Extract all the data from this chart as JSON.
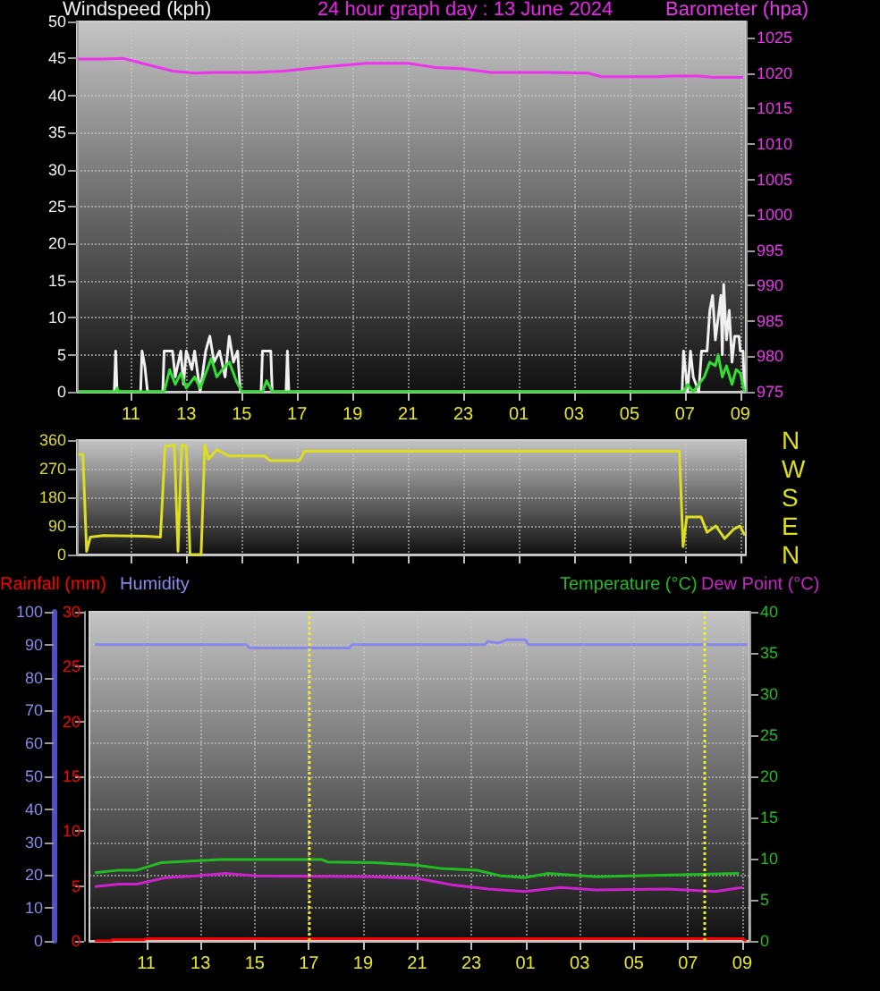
{
  "chart_data": [
    {
      "type": "line",
      "title": "24 hour graph day : 13 June 2024",
      "ylabel": "Windspeed (kph)",
      "y2label": "Barometer (hpa)",
      "xlim": [
        "2024-06-13T09:03",
        "2024-06-14T09:12"
      ],
      "xticks": [
        {
          "value": "2024-06-13T11:00",
          "label": "11"
        },
        {
          "value": "2024-06-13T13:00",
          "label": "13"
        },
        {
          "value": "2024-06-13T15:00",
          "label": "15"
        },
        {
          "value": "2024-06-13T17:00",
          "label": "17"
        },
        {
          "value": "2024-06-13T19:00",
          "label": "19"
        },
        {
          "value": "2024-06-13T21:00",
          "label": "21"
        },
        {
          "value": "2024-06-13T23:00",
          "label": "23"
        },
        {
          "value": "2024-06-14T01:00",
          "label": "01"
        },
        {
          "value": "2024-06-14T03:00",
          "label": "03"
        },
        {
          "value": "2024-06-14T05:00",
          "label": "05"
        },
        {
          "value": "2024-06-14T07:00",
          "label": "07"
        },
        {
          "value": "2024-06-14T09:00",
          "label": "09"
        }
      ],
      "ylim": [
        0,
        50
      ],
      "yticks": [
        0,
        5,
        10,
        15,
        20,
        25,
        30,
        35,
        40,
        45,
        50
      ],
      "y2lim": [
        975,
        1027.3
      ],
      "y2ticks": [
        975,
        980,
        985,
        990,
        995,
        1000,
        1005,
        1010,
        1015,
        1020,
        1025
      ],
      "grid": true,
      "series": [
        {
          "color": "#f0f0f0",
          "x": [
            "2024-06-13T09:06",
            "2024-06-13T10:24",
            "2024-06-13T10:27",
            "2024-06-13T10:30",
            "2024-06-13T11:21",
            "2024-06-13T11:24",
            "2024-06-13T11:30",
            "2024-06-13T11:36",
            "2024-06-13T12:09",
            "2024-06-13T12:12",
            "2024-06-13T12:30",
            "2024-06-13T12:36",
            "2024-06-13T12:48",
            "2024-06-13T12:54",
            "2024-06-13T13:00",
            "2024-06-13T13:12",
            "2024-06-13T13:18",
            "2024-06-13T13:30",
            "2024-06-13T13:42",
            "2024-06-13T13:51",
            "2024-06-13T14:00",
            "2024-06-13T14:12",
            "2024-06-13T14:24",
            "2024-06-13T14:33",
            "2024-06-13T14:42",
            "2024-06-13T14:51",
            "2024-06-13T14:57",
            "2024-06-13T15:42",
            "2024-06-13T15:45",
            "2024-06-13T16:03",
            "2024-06-13T16:06",
            "2024-06-13T16:36",
            "2024-06-13T16:39",
            "2024-06-13T16:42",
            "2024-06-14T06:54",
            "2024-06-14T06:57",
            "2024-06-14T07:06",
            "2024-06-14T07:12",
            "2024-06-14T07:18",
            "2024-06-14T07:30",
            "2024-06-14T07:36",
            "2024-06-14T07:48",
            "2024-06-14T07:54",
            "2024-06-14T08:00",
            "2024-06-14T08:06",
            "2024-06-14T08:12",
            "2024-06-14T08:18",
            "2024-06-14T08:21",
            "2024-06-14T08:24",
            "2024-06-14T08:30",
            "2024-06-14T08:36",
            "2024-06-14T08:42",
            "2024-06-14T08:48",
            "2024-06-14T08:57",
            "2024-06-14T09:00",
            "2024-06-14T09:06",
            "2024-06-14T09:09"
          ],
          "values": [
            0,
            0,
            5.5,
            0,
            0,
            5.5,
            3.5,
            0,
            0,
            5.5,
            5.5,
            2,
            5.5,
            1,
            5.5,
            3,
            5.5,
            0,
            5.5,
            7.5,
            4,
            5.5,
            2,
            7.5,
            4,
            5.5,
            0,
            0,
            5.5,
            5.5,
            0,
            0,
            5.5,
            0,
            0,
            5.5,
            0,
            5.5,
            2,
            0,
            5.5,
            5.5,
            11,
            13,
            7,
            10,
            13,
            5,
            14.5,
            7,
            11,
            4,
            7.5,
            7.5,
            5.5,
            5.5,
            0
          ]
        },
        {
          "color": "#33dd33",
          "x": [
            "2024-06-13T09:06",
            "2024-06-13T10:27",
            "2024-06-13T10:30",
            "2024-06-13T10:33",
            "2024-06-13T12:12",
            "2024-06-13T12:24",
            "2024-06-13T12:36",
            "2024-06-13T12:48",
            "2024-06-13T13:00",
            "2024-06-13T13:18",
            "2024-06-13T13:30",
            "2024-06-13T13:42",
            "2024-06-13T13:54",
            "2024-06-13T14:06",
            "2024-06-13T14:18",
            "2024-06-13T14:33",
            "2024-06-13T14:48",
            "2024-06-13T15:00",
            "2024-06-13T15:45",
            "2024-06-13T15:54",
            "2024-06-13T16:06",
            "2024-06-14T06:57",
            "2024-06-14T07:06",
            "2024-06-14T07:18",
            "2024-06-14T07:42",
            "2024-06-14T07:54",
            "2024-06-14T08:06",
            "2024-06-14T08:12",
            "2024-06-14T08:21",
            "2024-06-14T08:30",
            "2024-06-14T08:42",
            "2024-06-14T08:51",
            "2024-06-14T09:00",
            "2024-06-14T09:09"
          ],
          "values": [
            0,
            0,
            0.5,
            0,
            0,
            3,
            1,
            2.5,
            0.5,
            2,
            0.5,
            2.5,
            4.5,
            2,
            3,
            4,
            1.5,
            0,
            0,
            1.5,
            0,
            0,
            1,
            0,
            2,
            4,
            3.5,
            5,
            2,
            3.5,
            1,
            3,
            2.5,
            0
          ]
        },
        {
          "color": "#ee33ee",
          "axis": "y2",
          "x": [
            "2024-06-13T09:06",
            "2024-06-13T10:00",
            "2024-06-13T10:42",
            "2024-06-13T11:30",
            "2024-06-13T12:30",
            "2024-06-13T13:18",
            "2024-06-13T14:00",
            "2024-06-13T15:30",
            "2024-06-13T16:30",
            "2024-06-13T18:00",
            "2024-06-13T19:30",
            "2024-06-13T21:00",
            "2024-06-13T22:00",
            "2024-06-13T23:00",
            "2024-06-14T00:00",
            "2024-06-14T02:00",
            "2024-06-14T03:30",
            "2024-06-14T04:00",
            "2024-06-14T06:00",
            "2024-06-14T06:30",
            "2024-06-14T07:30",
            "2024-06-14T08:00",
            "2024-06-14T09:06"
          ],
          "values": [
            1022.0,
            1022.0,
            1022.1,
            1021.3,
            1020.3,
            1020.0,
            1020.1,
            1020.1,
            1020.3,
            1020.9,
            1021.4,
            1021.4,
            1020.8,
            1020.6,
            1020.1,
            1020.1,
            1020.0,
            1019.5,
            1019.5,
            1019.6,
            1019.6,
            1019.4,
            1019.4
          ]
        }
      ]
    },
    {
      "type": "line",
      "xlim": [
        "2024-06-13T09:03",
        "2024-06-14T09:12"
      ],
      "xticks": [
        {
          "value": "2024-06-13T11:00",
          "label": null
        },
        {
          "value": "2024-06-13T13:00",
          "label": null
        },
        {
          "value": "2024-06-13T15:00",
          "label": null
        },
        {
          "value": "2024-06-13T17:00",
          "label": null
        },
        {
          "value": "2024-06-13T19:00",
          "label": null
        },
        {
          "value": "2024-06-13T21:00",
          "label": null
        },
        {
          "value": "2024-06-13T23:00",
          "label": null
        },
        {
          "value": "2024-06-14T01:00",
          "label": null
        },
        {
          "value": "2024-06-14T03:00",
          "label": null
        },
        {
          "value": "2024-06-14T05:00",
          "label": null
        },
        {
          "value": "2024-06-14T07:00",
          "label": null
        },
        {
          "value": "2024-06-14T09:00",
          "label": null
        }
      ],
      "ylim": [
        0,
        360
      ],
      "yticks": [
        0,
        90,
        180,
        270,
        360
      ],
      "annotations": [
        "N",
        "W",
        "S",
        "E",
        "N"
      ],
      "grid": true,
      "tick_labels": "y",
      "series": [
        {
          "color": "#dddd22",
          "x": [
            "2024-06-13T09:06",
            "2024-06-13T09:16",
            "2024-06-13T09:24",
            "2024-06-13T09:32",
            "2024-06-13T10:00",
            "2024-06-13T11:30",
            "2024-06-13T12:04",
            "2024-06-13T12:14",
            "2024-06-13T12:34",
            "2024-06-13T12:42",
            "2024-06-13T12:50",
            "2024-06-13T13:00",
            "2024-06-13T13:08",
            "2024-06-13T13:32",
            "2024-06-13T13:40",
            "2024-06-13T13:48",
            "2024-06-13T14:06",
            "2024-06-13T14:32",
            "2024-06-13T15:49",
            "2024-06-13T16:02",
            "2024-06-13T17:05",
            "2024-06-13T17:16",
            "2024-06-14T06:48",
            "2024-06-14T06:56",
            "2024-06-14T07:04",
            "2024-06-14T07:35",
            "2024-06-14T07:48",
            "2024-06-14T08:07",
            "2024-06-14T08:26",
            "2024-06-14T08:46",
            "2024-06-14T08:59",
            "2024-06-14T09:10"
          ],
          "values": [
            315,
            315,
            10,
            55,
            60,
            58,
            55,
            340,
            345,
            10,
            345,
            340,
            0,
            0,
            345,
            300,
            330,
            310,
            310,
            295,
            295,
            325,
            325,
            25,
            118,
            118,
            70,
            90,
            50,
            80,
            90,
            60
          ]
        }
      ]
    },
    {
      "type": "line",
      "xlim": [
        "2024-06-13T08:54",
        "2024-06-14T09:16"
      ],
      "xticks": [
        {
          "value": "2024-06-13T11:00",
          "label": "11"
        },
        {
          "value": "2024-06-13T13:00",
          "label": "13"
        },
        {
          "value": "2024-06-13T15:00",
          "label": "15"
        },
        {
          "value": "2024-06-13T17:00",
          "label": "17"
        },
        {
          "value": "2024-06-13T19:00",
          "label": "19"
        },
        {
          "value": "2024-06-13T21:00",
          "label": "21"
        },
        {
          "value": "2024-06-13T23:00",
          "label": "23"
        },
        {
          "value": "2024-06-14T01:00",
          "label": "01"
        },
        {
          "value": "2024-06-14T03:00",
          "label": "03"
        },
        {
          "value": "2024-06-14T05:00",
          "label": "05"
        },
        {
          "value": "2024-06-14T07:00",
          "label": "07"
        },
        {
          "value": "2024-06-14T09:00",
          "label": "09"
        }
      ],
      "ylim": [
        0,
        100
      ],
      "yticks": [
        0,
        10,
        20,
        30,
        40,
        50,
        60,
        70,
        80,
        90,
        100
      ],
      "y2lim": [
        0,
        30
      ],
      "y2ticks": [
        0,
        5,
        10,
        15,
        20,
        25,
        30
      ],
      "y3lim": [
        0,
        40
      ],
      "y3ticks": [
        0,
        5,
        10,
        15,
        20,
        25,
        30,
        35,
        40
      ],
      "grid": true,
      "ref_lines": [
        {
          "axis": "x",
          "value": "2024-06-13T17:00",
          "color": "#eeee22",
          "line_style": "dotted"
        },
        {
          "axis": "x",
          "value": "2024-06-14T07:36",
          "color": "#eeee22",
          "line_style": "dotted"
        }
      ],
      "series": [
        {
          "name": "Rainfall (mm)",
          "color": "#ff0000",
          "axis": "y2",
          "x": [
            "2024-06-13T09:06",
            "2024-06-13T09:42",
            "2024-06-13T09:45",
            "2024-06-13T10:54",
            "2024-06-13T11:00",
            "2024-06-14T09:00",
            "2024-06-14T09:09"
          ],
          "values": [
            0,
            0,
            0.1,
            0.1,
            0.2,
            0.2,
            0
          ]
        },
        {
          "name": "Humidity",
          "color": "#8888ee",
          "x": [
            "2024-06-13T09:06",
            "2024-06-13T14:42",
            "2024-06-13T14:48",
            "2024-06-13T18:30",
            "2024-06-13T18:36",
            "2024-06-13T23:30",
            "2024-06-13T23:36",
            "2024-06-14T00:00",
            "2024-06-14T00:18",
            "2024-06-14T01:00",
            "2024-06-14T01:06",
            "2024-06-14T09:12"
          ],
          "values": [
            90,
            90,
            89,
            89,
            90,
            90,
            91,
            90.5,
            91.5,
            91.5,
            90,
            90
          ]
        },
        {
          "name": "Temperature (°C)",
          "color": "#22bb22",
          "axis": "y3",
          "x": [
            "2024-06-13T09:06",
            "2024-06-13T09:59",
            "2024-06-13T10:39",
            "2024-06-13T11:32",
            "2024-06-13T12:38",
            "2024-06-13T13:44",
            "2024-06-13T15:03",
            "2024-06-13T17:28",
            "2024-06-13T17:41",
            "2024-06-13T19:27",
            "2024-06-13T20:59",
            "2024-06-13T21:52",
            "2024-06-13T23:12",
            "2024-06-14T00:05",
            "2024-06-14T00:58",
            "2024-06-14T01:50",
            "2024-06-14T03:36",
            "2024-06-14T04:55",
            "2024-06-14T08:53"
          ],
          "values": [
            8.3,
            8.6,
            8.6,
            9.5,
            9.7,
            9.9,
            9.9,
            9.9,
            9.6,
            9.5,
            9.2,
            8.8,
            8.6,
            7.9,
            7.7,
            8.2,
            7.8,
            7.9,
            8.2
          ]
        },
        {
          "name": "Dew Point (°C)",
          "color": "#cc22cc",
          "axis": "y3",
          "x": [
            "2024-06-13T09:06",
            "2024-06-13T09:59",
            "2024-06-13T10:39",
            "2024-06-13T11:45",
            "2024-06-13T12:51",
            "2024-06-13T13:57",
            "2024-06-13T15:03",
            "2024-06-13T19:14",
            "2024-06-13T20:59",
            "2024-06-13T22:19",
            "2024-06-13T23:38",
            "2024-06-14T00:58",
            "2024-06-14T02:17",
            "2024-06-14T03:36",
            "2024-06-14T06:14",
            "2024-06-14T08:00",
            "2024-06-14T09:00"
          ],
          "values": [
            6.6,
            6.9,
            6.9,
            7.7,
            7.9,
            8.2,
            7.9,
            7.8,
            7.6,
            6.8,
            6.3,
            6.0,
            6.5,
            6.2,
            6.3,
            6.0,
            6.5
          ]
        }
      ]
    }
  ]
}
